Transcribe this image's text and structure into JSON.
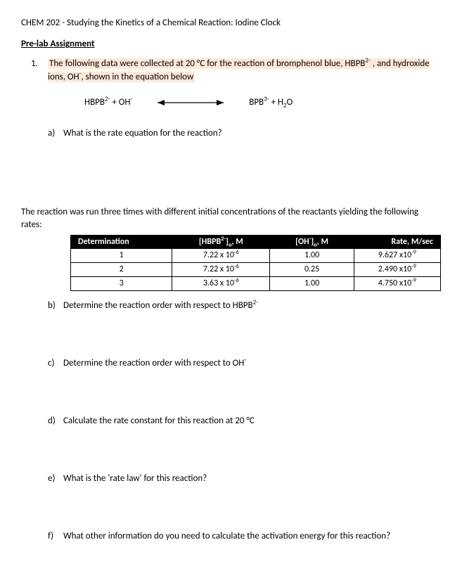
{
  "course_title": "CHEM 202 - Studying the Kinetics of a Chemical Reaction: Iodine Clock",
  "section_heading": "Pre-lab Assignment",
  "q1": {
    "num": "1.",
    "text_line1": "The following data were collected at 20 °C for the reaction of bromphenol blue, HBPB",
    "text_line1_sup": "2-",
    "text_line1_tail": " , and hydroxide",
    "text_line2_pre": "ions, OH",
    "text_line2_sup": "-",
    "text_line2_tail": ", shown in the equation below"
  },
  "equation": {
    "lhs1": "HBPB",
    "lhs1_sup": "2-",
    "plus1": "  +  ",
    "lhs2": "OH",
    "lhs2_sup": "-",
    "rhs1": "BPB",
    "rhs1_sup": "3-",
    "plus2": "  +  ",
    "rhs2": "H",
    "rhs2_sub": "2",
    "rhs2_tail": "O"
  },
  "sub_a": {
    "letter": "a)",
    "text": "What is the rate equation for the reaction?"
  },
  "intro_rates": "The reaction was run three times with different initial concentrations of the reactants yielding the following rates:",
  "table": {
    "headers": {
      "c0": "Determination",
      "c1_pre": "[HBPB",
      "c1_sup": "2-",
      "c1_post": "]",
      "c1_sub": "o",
      "c1_tail": ", M",
      "c2_pre": "[OH",
      "c2_sup": "-",
      "c2_post": "]",
      "c2_sub": "o",
      "c2_tail": ", M",
      "c3": "Rate, M/sec"
    },
    "rows": [
      {
        "det": "1",
        "hbpb_m": "7.22 x 10",
        "hbpb_e": "-6",
        "oh": "1.00",
        "rate_m": "9.627 x10",
        "rate_e": "-9"
      },
      {
        "det": "2",
        "hbpb_m": "7.22 x 10",
        "hbpb_e": "-6",
        "oh": "0.25",
        "rate_m": "2.490 x10",
        "rate_e": "-9"
      },
      {
        "det": "3",
        "hbpb_m": "3.63 x 10",
        "hbpb_e": "-6",
        "oh": "1.00",
        "rate_m": "4.750 x10",
        "rate_e": "-9"
      }
    ]
  },
  "sub_b": {
    "letter": "b)",
    "text": "Determine the reaction order with respect to HBPB",
    "sup": "2-"
  },
  "sub_c": {
    "letter": "c)",
    "text": "Determine the reaction order with respect to OH",
    "sup": "-"
  },
  "sub_d": {
    "letter": "d)",
    "text": "Calculate the rate constant for this reaction at 20 °C"
  },
  "sub_e": {
    "letter": "e)",
    "text": "What is the 'rate law' for this reaction?"
  },
  "sub_f": {
    "letter": "f)",
    "text": "What other information do you need to calculate the activation energy for this reaction?"
  }
}
